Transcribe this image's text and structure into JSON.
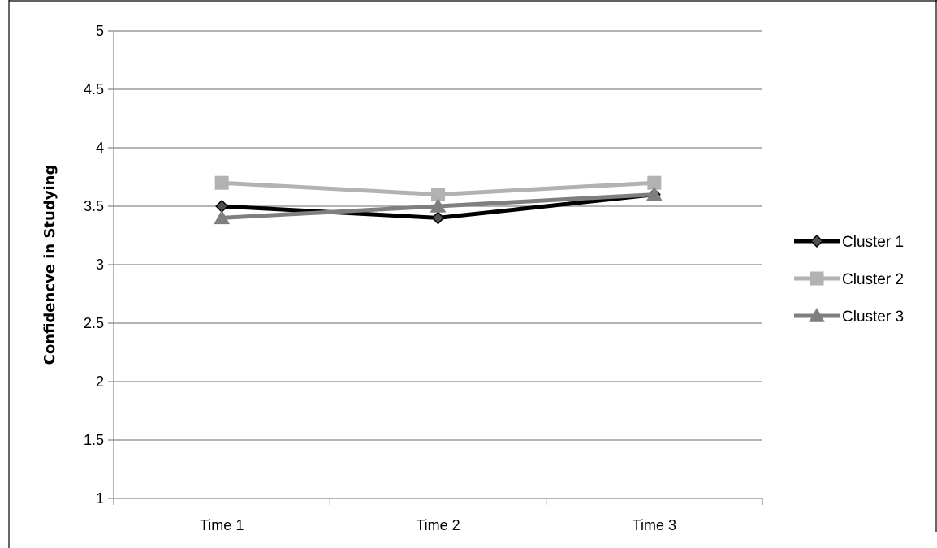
{
  "chart_data": {
    "type": "line",
    "title": "",
    "xlabel": "",
    "ylabel": "Confidencve in Studying",
    "categories": [
      "Time 1",
      "Time 2",
      "Time 3"
    ],
    "ylim": [
      1,
      5
    ],
    "yticks": [
      "1",
      "1.5",
      "2",
      "2.5",
      "3",
      "3.5",
      "4",
      "4.5",
      "5"
    ],
    "ytick_values": [
      1,
      1.5,
      2,
      2.5,
      3,
      3.5,
      4,
      4.5,
      5
    ],
    "grid": true,
    "legend_position": "right",
    "series": [
      {
        "name": "Cluster 1",
        "values": [
          3.5,
          3.4,
          3.6
        ],
        "color": "#000000",
        "marker": "diamond"
      },
      {
        "name": "Cluster 2",
        "values": [
          3.7,
          3.6,
          3.7
        ],
        "color": "#b2b2b2",
        "marker": "square"
      },
      {
        "name": "Cluster 3",
        "values": [
          3.4,
          3.5,
          3.6
        ],
        "color": "#7f7f7f",
        "marker": "triangle"
      }
    ]
  },
  "colors": {
    "frame": "#000000",
    "gridline": "#868686",
    "axis": "#868686"
  }
}
